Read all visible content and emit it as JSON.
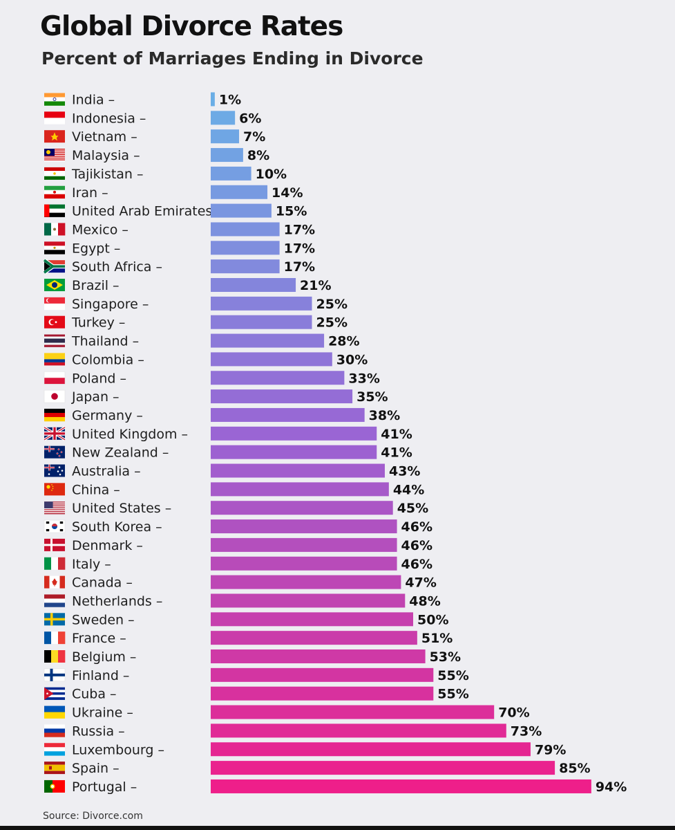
{
  "header": {
    "title": "Global Divorce Rates",
    "subtitle": "Percent of Marriages Ending in Divorce"
  },
  "source": "Source: Divorce.com",
  "colors": {
    "bar_start": "#6aaee6",
    "bar_mid": "#9b63d3",
    "bar_end": "#ee1f8a"
  },
  "chart_data": {
    "type": "bar",
    "orientation": "horizontal",
    "title": "Global Divorce Rates",
    "subtitle": "Percent of Marriages Ending in Divorce",
    "value_suffix": "%",
    "categories": [
      "India",
      "Indonesia",
      "Vietnam",
      "Malaysia",
      "Tajikistan",
      "Iran",
      "United Arab Emirates",
      "Mexico",
      "Egypt",
      "South Africa",
      "Brazil",
      "Singapore",
      "Turkey",
      "Thailand",
      "Colombia",
      "Poland",
      "Japan",
      "Germany",
      "United Kingdom",
      "New Zealand",
      "Australia",
      "China",
      "United States",
      "South Korea",
      "Denmark",
      "Italy",
      "Canada",
      "Netherlands",
      "Sweden",
      "France",
      "Belgium",
      "Finland",
      "Cuba",
      "Ukraine",
      "Russia",
      "Luxembourg",
      "Spain",
      "Portugal"
    ],
    "values": [
      1,
      6,
      7,
      8,
      10,
      14,
      15,
      17,
      17,
      17,
      21,
      25,
      25,
      28,
      30,
      33,
      35,
      38,
      41,
      41,
      43,
      44,
      45,
      46,
      46,
      46,
      47,
      48,
      50,
      51,
      53,
      55,
      55,
      70,
      73,
      79,
      85,
      94
    ],
    "flag_icons": [
      "india-flag-icon",
      "indonesia-flag-icon",
      "vietnam-flag-icon",
      "malaysia-flag-icon",
      "tajikistan-flag-icon",
      "iran-flag-icon",
      "uae-flag-icon",
      "mexico-flag-icon",
      "egypt-flag-icon",
      "south-africa-flag-icon",
      "brazil-flag-icon",
      "singapore-flag-icon",
      "turkey-flag-icon",
      "thailand-flag-icon",
      "colombia-flag-icon",
      "poland-flag-icon",
      "japan-flag-icon",
      "germany-flag-icon",
      "uk-flag-icon",
      "new-zealand-flag-icon",
      "australia-flag-icon",
      "china-flag-icon",
      "usa-flag-icon",
      "south-korea-flag-icon",
      "denmark-flag-icon",
      "italy-flag-icon",
      "canada-flag-icon",
      "netherlands-flag-icon",
      "sweden-flag-icon",
      "france-flag-icon",
      "belgium-flag-icon",
      "finland-flag-icon",
      "cuba-flag-icon",
      "ukraine-flag-icon",
      "russia-flag-icon",
      "luxembourg-flag-icon",
      "spain-flag-icon",
      "portugal-flag-icon"
    ],
    "xlim": [
      0,
      94
    ],
    "grid": false,
    "legend": "none"
  }
}
